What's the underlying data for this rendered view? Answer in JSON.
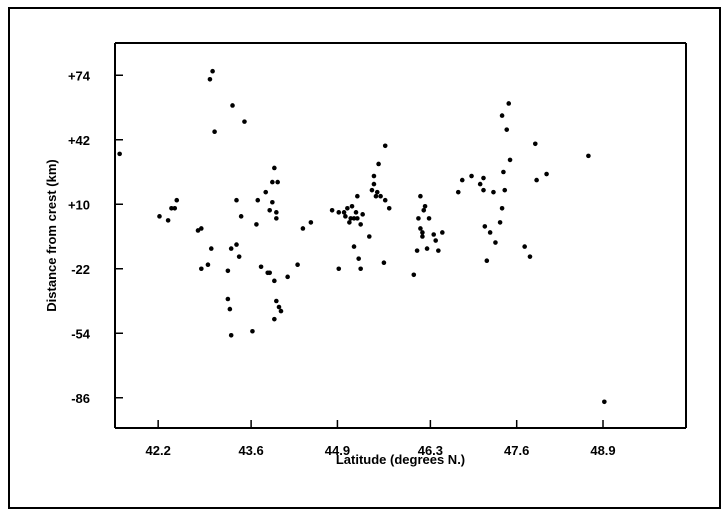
{
  "chart_data": {
    "type": "scatter",
    "title": "",
    "xlabel": "Latitude (degrees N.)",
    "ylabel": "Distance from crest (km)",
    "xlim": [
      41.55,
      50.15
    ],
    "ylim": [
      -101,
      90
    ],
    "xticks": [
      42.2,
      43.6,
      44.9,
      46.3,
      47.6,
      48.9
    ],
    "xtick_labels": [
      "42.2",
      "43.6",
      "44.9",
      "46.3",
      "47.6",
      "48.9"
    ],
    "yticks": [
      74,
      42,
      10,
      -22,
      -54,
      -86
    ],
    "ytick_labels": [
      "+74",
      "+42",
      "+10",
      "-22",
      "-54",
      "-86"
    ],
    "grid": false,
    "points": [
      [
        41.62,
        35
      ],
      [
        42.22,
        4
      ],
      [
        42.35,
        2
      ],
      [
        42.4,
        8
      ],
      [
        42.45,
        8
      ],
      [
        42.48,
        12
      ],
      [
        42.8,
        -3
      ],
      [
        42.85,
        -2
      ],
      [
        42.85,
        -22
      ],
      [
        42.95,
        -20
      ],
      [
        43.0,
        -12
      ],
      [
        42.98,
        72
      ],
      [
        43.02,
        76
      ],
      [
        43.05,
        46
      ],
      [
        43.25,
        -23
      ],
      [
        43.25,
        -37
      ],
      [
        43.28,
        -42
      ],
      [
        43.3,
        -12
      ],
      [
        43.3,
        -55
      ],
      [
        43.32,
        59
      ],
      [
        43.38,
        -10
      ],
      [
        43.38,
        12
      ],
      [
        43.42,
        -16
      ],
      [
        43.45,
        4
      ],
      [
        43.5,
        51
      ],
      [
        43.62,
        -53
      ],
      [
        43.68,
        0
      ],
      [
        43.7,
        12
      ],
      [
        43.75,
        -21
      ],
      [
        43.82,
        16
      ],
      [
        43.85,
        -24
      ],
      [
        43.88,
        -24
      ],
      [
        43.88,
        7
      ],
      [
        43.92,
        11
      ],
      [
        43.92,
        21
      ],
      [
        43.95,
        28
      ],
      [
        43.95,
        -28
      ],
      [
        43.95,
        -47
      ],
      [
        43.98,
        6
      ],
      [
        43.98,
        3
      ],
      [
        43.98,
        -38
      ],
      [
        44.0,
        21
      ],
      [
        44.02,
        -41
      ],
      [
        44.05,
        -43
      ],
      [
        44.15,
        -26
      ],
      [
        44.3,
        -20
      ],
      [
        44.38,
        -2
      ],
      [
        44.5,
        1
      ],
      [
        44.82,
        7
      ],
      [
        44.92,
        6
      ],
      [
        44.92,
        -22
      ],
      [
        45.0,
        6
      ],
      [
        45.02,
        4
      ],
      [
        45.05,
        8
      ],
      [
        45.08,
        1
      ],
      [
        45.1,
        3
      ],
      [
        45.12,
        9
      ],
      [
        45.15,
        3
      ],
      [
        45.15,
        -11
      ],
      [
        45.18,
        6
      ],
      [
        45.2,
        14
      ],
      [
        45.2,
        3
      ],
      [
        45.22,
        -17
      ],
      [
        45.25,
        0
      ],
      [
        45.25,
        -22
      ],
      [
        45.28,
        5
      ],
      [
        45.38,
        -6
      ],
      [
        45.42,
        17
      ],
      [
        45.45,
        24
      ],
      [
        45.45,
        20
      ],
      [
        45.48,
        14
      ],
      [
        45.5,
        16
      ],
      [
        45.52,
        30
      ],
      [
        45.55,
        14
      ],
      [
        45.6,
        -19
      ],
      [
        45.62,
        12
      ],
      [
        45.62,
        39
      ],
      [
        45.68,
        8
      ],
      [
        46.05,
        -25
      ],
      [
        46.1,
        -13
      ],
      [
        46.12,
        3
      ],
      [
        46.15,
        -2
      ],
      [
        46.15,
        14
      ],
      [
        46.18,
        -4
      ],
      [
        46.18,
        -6
      ],
      [
        46.2,
        7
      ],
      [
        46.22,
        9
      ],
      [
        46.25,
        -12
      ],
      [
        46.28,
        3
      ],
      [
        46.35,
        -5
      ],
      [
        46.38,
        -8
      ],
      [
        46.42,
        -13
      ],
      [
        46.48,
        -4
      ],
      [
        46.72,
        16
      ],
      [
        46.78,
        22
      ],
      [
        46.92,
        24
      ],
      [
        47.05,
        20
      ],
      [
        47.1,
        23
      ],
      [
        47.1,
        17
      ],
      [
        47.12,
        -1
      ],
      [
        47.15,
        -18
      ],
      [
        47.2,
        -4
      ],
      [
        47.25,
        16
      ],
      [
        47.28,
        -9
      ],
      [
        47.35,
        1
      ],
      [
        47.38,
        8
      ],
      [
        47.38,
        54
      ],
      [
        47.4,
        26
      ],
      [
        47.42,
        17
      ],
      [
        47.45,
        47
      ],
      [
        47.48,
        60
      ],
      [
        47.5,
        32
      ],
      [
        47.72,
        -11
      ],
      [
        47.8,
        -16
      ],
      [
        47.88,
        40
      ],
      [
        47.9,
        22
      ],
      [
        48.05,
        25
      ],
      [
        48.68,
        34
      ],
      [
        48.92,
        -88
      ]
    ]
  }
}
